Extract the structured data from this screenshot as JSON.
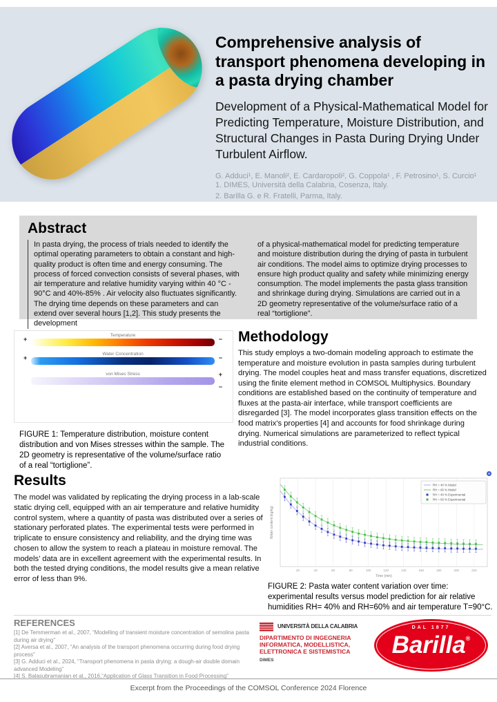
{
  "poster": {
    "title": "Comprehensive analysis of transport phenomena developing in a pasta drying chamber",
    "subtitle": "Development of a Physical-Mathematical Model for Predicting Temperature, Moisture Distribution, and Structural Changes in Pasta During Drying Under Turbulent Airflow.",
    "authors": "G. Adduci¹, E. Manoli², E. Cardaropoli², G. Coppola¹ , F. Petrosino¹, S. Curcio¹",
    "affiliation1": "1. DIMES, Università della Calabria, Cosenza, Italy.",
    "affiliation2": "2. Barilla G. e R. Fratelli, Parma, Italy."
  },
  "abstract": {
    "heading": "Abstract",
    "col1": "In pasta drying, the process of trials needed to identify the optimal operating parameters to obtain a constant and high-quality product is often time and energy consuming. The process of forced convection consists of several phases, with air temperature and relative humidity varying within 40 °C - 90°C and 40%-85% . Air velocity also fluctuates significantly. The drying time depends on these parameters and can extend over several hours [1,2]. This study presents the development",
    "col2": "of a physical-mathematical model for predicting temperature and moisture distribution during the drying of pasta in turbulent air conditions. The model aims to optimize drying processes to ensure high product quality and safety while minimizing energy consumption. The model implements the pasta glass transition and shrinkage during drying. Simulations are carried out in a 2D geometry representative of the volume/surface ratio of a real “tortiglione”."
  },
  "figure1": {
    "bars": [
      {
        "label": "Temperature",
        "plus": "+",
        "minus": "−"
      },
      {
        "label": "Water Concentration",
        "plus": "+",
        "minus": "−"
      },
      {
        "label": "von Mises Stress",
        "plus": "+",
        "minus": "−"
      }
    ],
    "caption": "FIGURE 1: Temperature distribution, moisture content distribution and von Mises stresses within the sample. The 2D geometry is representative of the volume/surface ratio of a real “tortiglione”."
  },
  "methodology": {
    "heading": "Methodology",
    "text": "This study employs a two-domain modeling approach to estimate the temperature and moisture evolution in pasta samples during turbulent drying. The model couples heat and mass transfer equations, discretized using the finite element method in COMSOL Multiphysics. Boundary conditions are established based on the continuity of temperature and fluxes at the pasta-air interface, while transport coefficients are disregarded [3]. The model incorporates glass transition effects on the food matrix's properties [4] and accounts for food shrinkage during drying. Numerical simulations are parameterized to reflect typical industrial conditions."
  },
  "results": {
    "heading": "Results",
    "text": "The model was validated by replicating the drying process in a lab-scale static drying cell, equipped with an air temperature and relative humidity control system, where a quantity of pasta was distributed over a series of stationary perforated plates. The experimental tests were performed in triplicate to ensure consistency and reliability, and the drying time was chosen to allow the system to reach a plateau in moisture removal. The models’ data are in excellent agreement with the experimental results. In both the tested drying conditions, the model results give a mean relative error of less than 9%."
  },
  "figure2": {
    "caption": "FIGURE 2:  Pasta water content variation over time: experimental results versus model prediction for air relative humidities RH= 40% and RH=60% and air temperature T=90°C."
  },
  "chart_data": {
    "type": "line",
    "title": "",
    "xlabel": "Time (min)",
    "ylabel": "Water content (kg/kg)",
    "xlim": [
      0,
      235
    ],
    "ylim": [
      0.05,
      0.47
    ],
    "x_ticks": [
      20,
      40,
      60,
      80,
      100,
      120,
      140,
      160,
      180,
      200,
      220
    ],
    "grid": "vertical",
    "legend_position": "top-right",
    "series": [
      {
        "name": "RH = 40 % Model",
        "type": "line",
        "color": "#aab4e8",
        "x": [
          0,
          10,
          20,
          30,
          40,
          50,
          60,
          70,
          80,
          90,
          100,
          110,
          120,
          130,
          140,
          150,
          160,
          170,
          180,
          190,
          200,
          210,
          220,
          230
        ],
        "y": [
          0.41,
          0.354,
          0.309,
          0.274,
          0.245,
          0.222,
          0.204,
          0.189,
          0.177,
          0.168,
          0.16,
          0.154,
          0.149,
          0.146,
          0.142,
          0.14,
          0.138,
          0.136,
          0.135,
          0.134,
          0.133,
          0.133,
          0.132,
          0.132
        ]
      },
      {
        "name": "RH = 60 % Model",
        "type": "line",
        "color": "#7ec87e",
        "x": [
          0,
          10,
          20,
          30,
          40,
          50,
          60,
          70,
          80,
          90,
          100,
          110,
          120,
          130,
          140,
          150,
          160,
          170,
          180,
          190,
          200,
          210,
          220,
          230
        ],
        "y": [
          0.44,
          0.392,
          0.352,
          0.318,
          0.29,
          0.267,
          0.247,
          0.231,
          0.218,
          0.206,
          0.197,
          0.189,
          0.183,
          0.177,
          0.173,
          0.169,
          0.166,
          0.163,
          0.161,
          0.159,
          0.157,
          0.156,
          0.155,
          0.154
        ]
      },
      {
        "name": "RH = 40 % Experimental",
        "type": "scatter",
        "color": "#3a3ac8",
        "yerr": 0.018,
        "x": [
          5,
          12,
          19,
          26,
          33,
          40,
          47,
          54,
          61,
          68,
          75,
          82,
          89,
          96,
          103,
          110,
          117,
          124,
          131,
          138,
          145,
          152,
          159,
          166,
          173,
          180,
          187,
          194,
          201,
          208,
          215,
          222
        ],
        "y": [
          0.381,
          0.345,
          0.314,
          0.287,
          0.264,
          0.245,
          0.229,
          0.214,
          0.202,
          0.192,
          0.183,
          0.175,
          0.169,
          0.163,
          0.159,
          0.155,
          0.151,
          0.149,
          0.146,
          0.144,
          0.143,
          0.141,
          0.14,
          0.139,
          0.138,
          0.137,
          0.137,
          0.136,
          0.136,
          0.135,
          0.135,
          0.135
        ]
      },
      {
        "name": "RH = 60 % Experimental",
        "type": "scatter",
        "color": "#44c044",
        "yerr": 0.02,
        "x": [
          5,
          12,
          19,
          26,
          33,
          40,
          47,
          54,
          61,
          68,
          75,
          82,
          89,
          96,
          103,
          110,
          117,
          124,
          131,
          138,
          145,
          152,
          159,
          166,
          173,
          180,
          187,
          194,
          201,
          208,
          215,
          222
        ],
        "y": [
          0.415,
          0.383,
          0.355,
          0.331,
          0.309,
          0.29,
          0.273,
          0.259,
          0.246,
          0.234,
          0.224,
          0.215,
          0.207,
          0.201,
          0.195,
          0.189,
          0.185,
          0.181,
          0.177,
          0.174,
          0.172,
          0.169,
          0.167,
          0.166,
          0.164,
          0.163,
          0.162,
          0.161,
          0.16,
          0.159,
          0.158,
          0.158
        ]
      }
    ]
  },
  "references": {
    "heading": "REFERENCES",
    "items": [
      "[1] De Temmerman et al., 2007,  “Modelling of transient moisture concentration of semolina pasta during air drying”",
      "[2] Aversa et al., 2007, “An analysis of the transport phenomena occurring during food drying process”",
      "[3] G. Adduci et al., 2024, “Transport phenomena in pasta drying: a dough-air double domain advanced Modeling”",
      "[4] S. Balasubramanian et al., 2016,“Application of Glass Transition in Food Processing”"
    ]
  },
  "logos": {
    "unical": {
      "name": "UNIVERSITÀ DELLA CALABRIA",
      "dept": "DIPARTIMENTO DI INGEGNERIA INFORMATICA, MODELLISTICA, ELETTRONICA E SISTEMISTICA",
      "sub": "DIMES",
      "accent_color": "#c8242e"
    },
    "barilla": {
      "top": "DAL 1877",
      "name": "Barilla",
      "reg": "®",
      "brand_color": "#e2001a"
    }
  },
  "footer": {
    "text": "Excerpt from the Proceedings of the COMSOL Conference 2024 Florence"
  }
}
